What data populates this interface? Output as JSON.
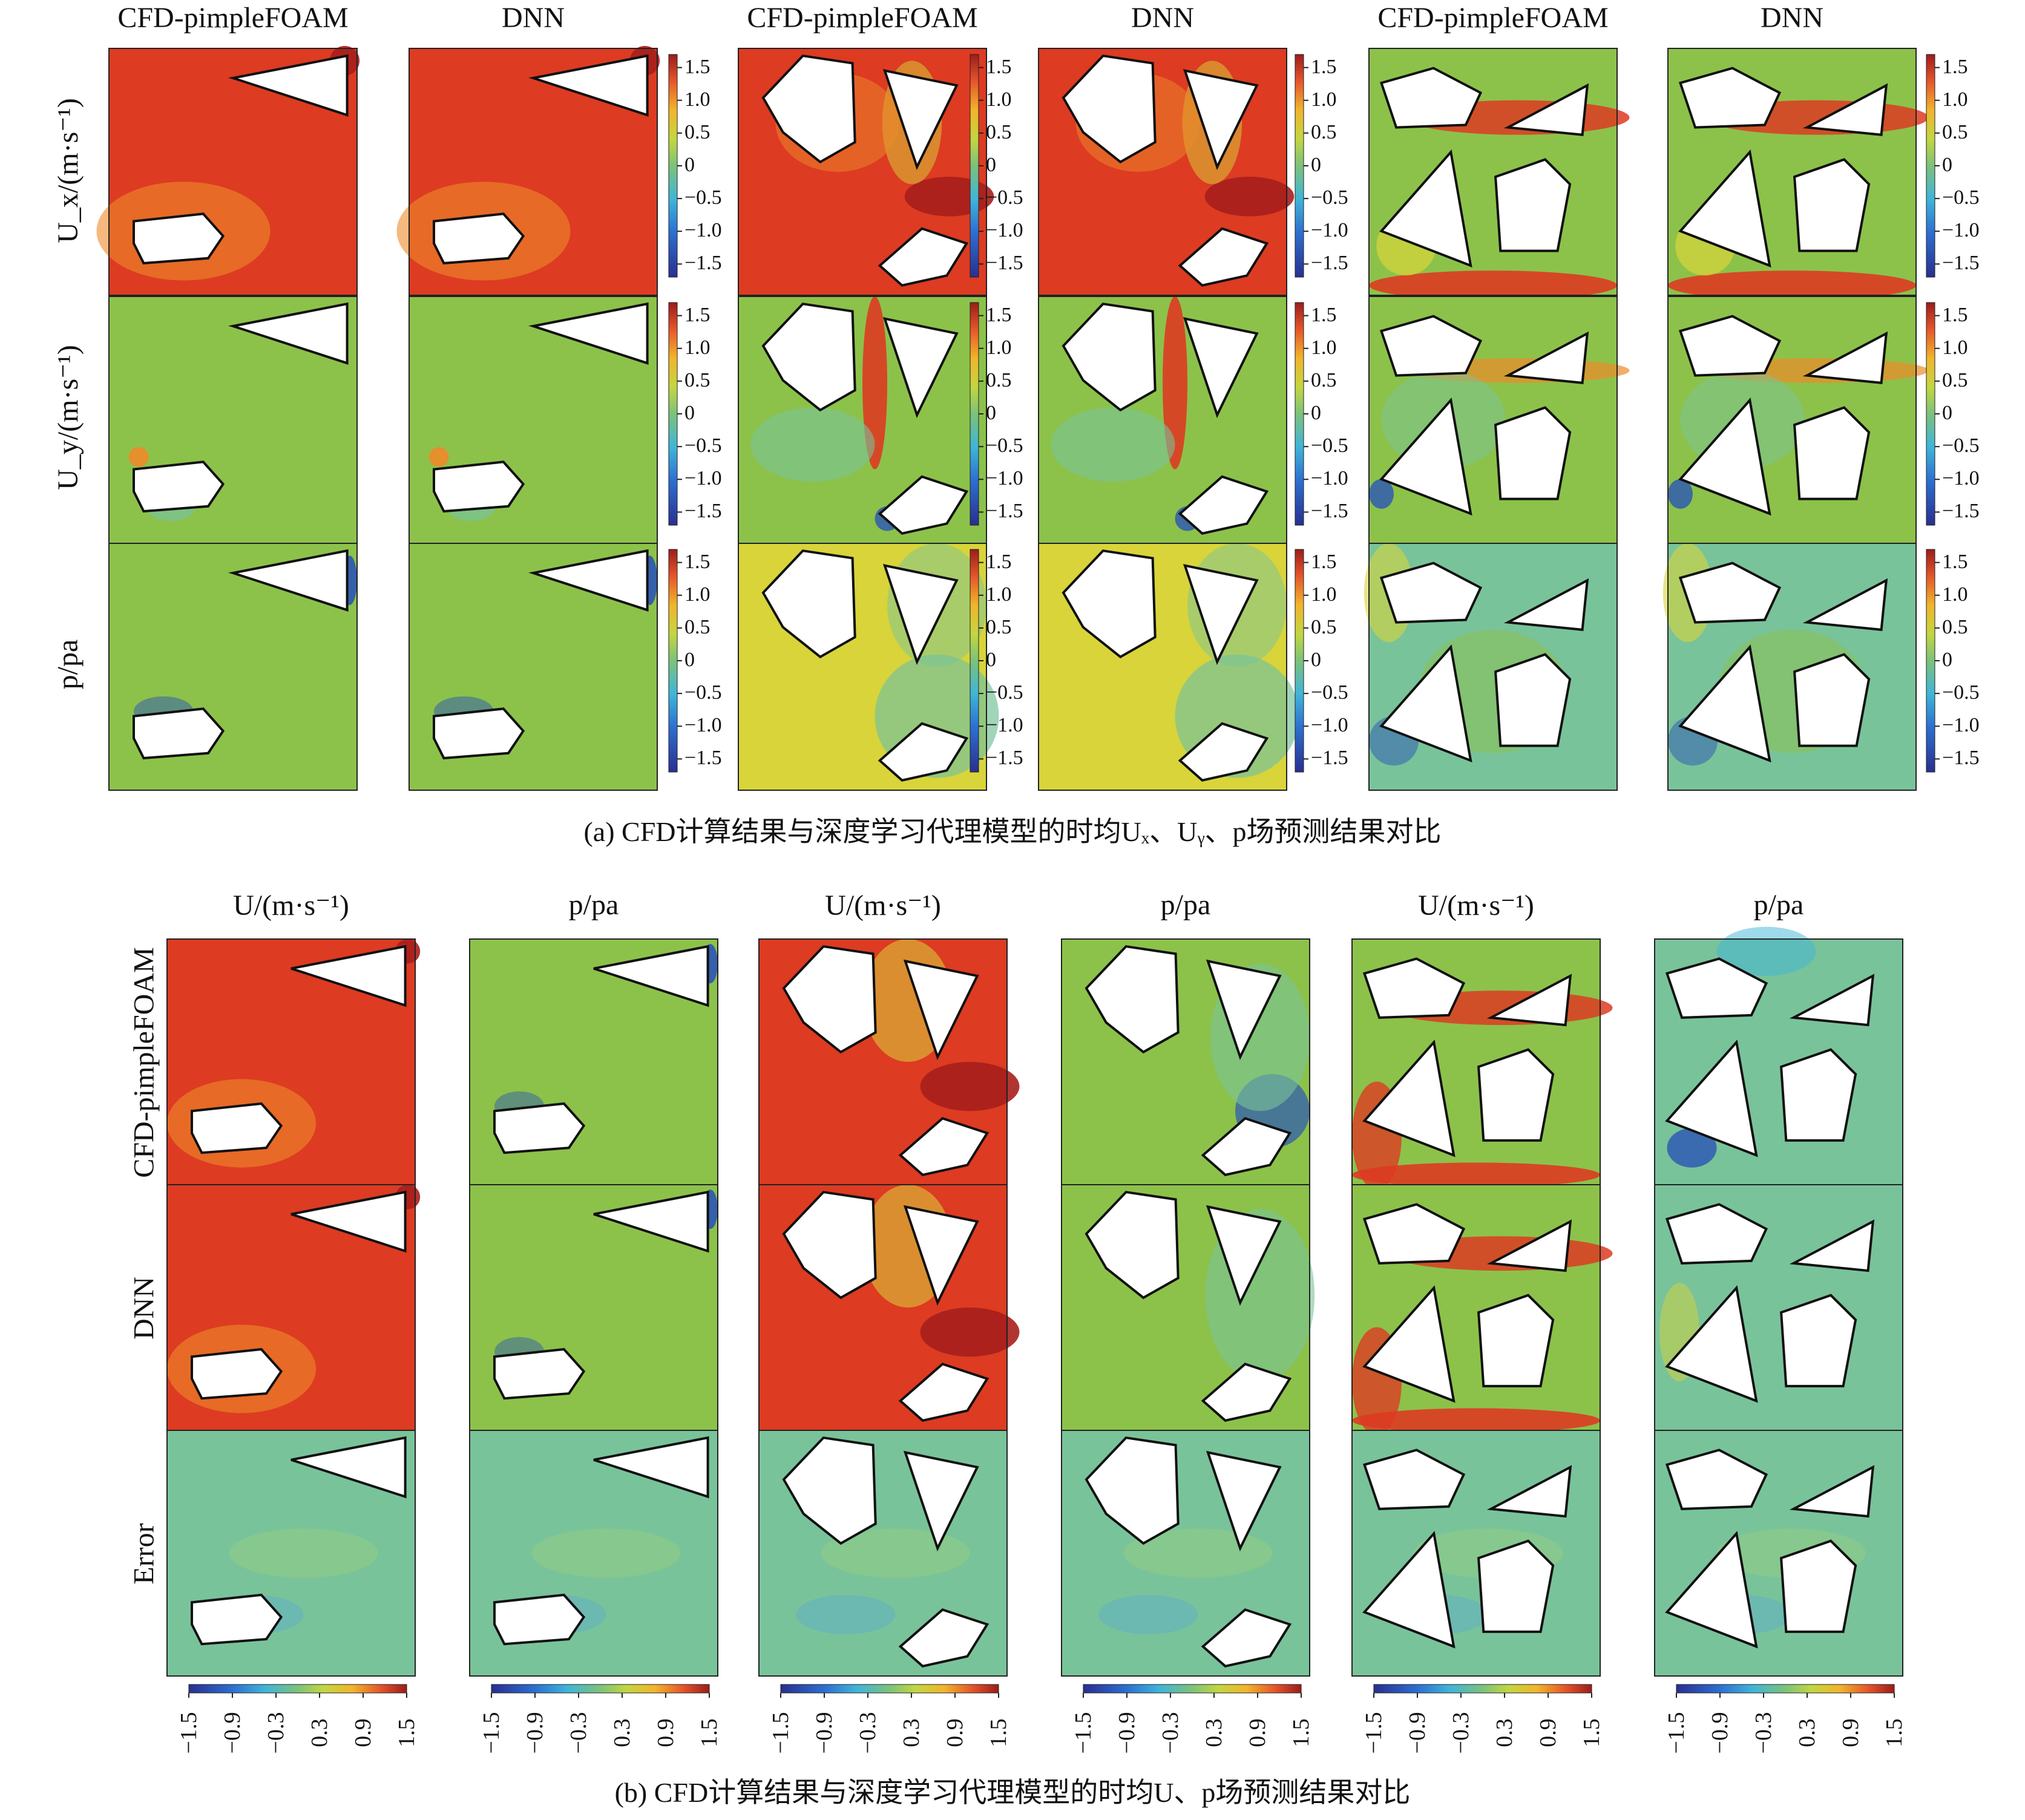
{
  "figure_a": {
    "column_headers": [
      "CFD-pimpleFOAM",
      "DNN",
      "CFD-pimpleFOAM",
      "DNN",
      "CFD-pimpleFOAM",
      "DNN"
    ],
    "row_labels": [
      "U_x/(m·s⁻¹)",
      "U_y/(m·s⁻¹)",
      "p/pa"
    ],
    "colorbar_ticks": [
      "1.5",
      "1.0",
      "0.5",
      "0",
      "−0.5",
      "−1.0",
      "−1.5"
    ],
    "colorbar_range": [
      -1.7,
      1.7
    ],
    "caption": "(a) CFD计算结果与深度学习代理模型的时均Uₓ、Uᵧ、p场预测结果对比"
  },
  "figure_b": {
    "column_headers": [
      "U/(m·s⁻¹)",
      "p/pa",
      "U/(m·s⁻¹)",
      "p/pa",
      "U/(m·s⁻¹)",
      "p/pa"
    ],
    "row_labels": [
      "CFD-pimpleFOAM",
      "DNN",
      "Error"
    ],
    "colorbar_ticks": [
      "−1.5",
      "−0.9",
      "−0.3",
      "0.3",
      "0.9",
      "1.5"
    ],
    "colorbar_range": [
      -1.5,
      1.5
    ],
    "caption": "(b) CFD计算结果与深度学习代理模型的时均U、p场预测结果对比"
  },
  "colors": {
    "field_high": "#d8351f",
    "field_mid": "#8cc44a",
    "field_neutral": "#7cc27a",
    "field_low": "#1d3a9a",
    "obstacle": "#ffffff"
  }
}
